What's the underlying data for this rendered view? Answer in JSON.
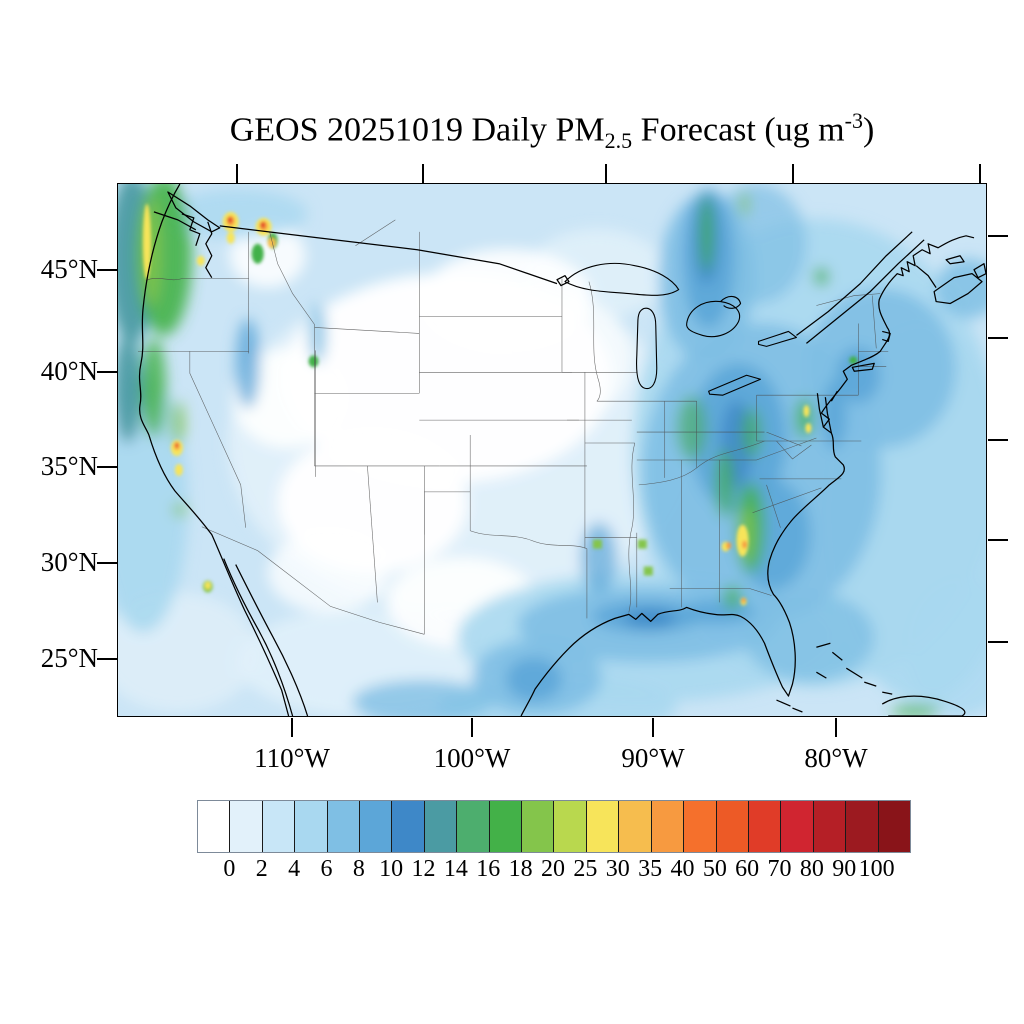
{
  "title": {
    "prefix": "GEOS 20251019 Daily PM",
    "sub": "2.5",
    "mid": " Forecast (ug m",
    "sup": "-3",
    "suffix": ")"
  },
  "axes": {
    "lat_labels": [
      "45°N",
      "40°N",
      "35°N",
      "30°N",
      "25°N"
    ],
    "lon_labels": [
      "110°W",
      "100°W",
      "90°W",
      "80°W"
    ]
  },
  "colorbar": {
    "tick_labels": [
      "0",
      "2",
      "4",
      "6",
      "8",
      "10",
      "12",
      "14",
      "16",
      "18",
      "20",
      "25",
      "30",
      "35",
      "40",
      "50",
      "60",
      "70",
      "80",
      "90",
      "100"
    ],
    "colors": [
      "#FFFFFF",
      "#E2F1FA",
      "#C8E6F7",
      "#A9D8F0",
      "#7FBFE4",
      "#5CA6D8",
      "#3E88C8",
      "#4B9BA3",
      "#4DAE6E",
      "#43B148",
      "#84C54B",
      "#B9D84E",
      "#F7E45A",
      "#F6BD4E",
      "#F79A40",
      "#F5702C",
      "#ED5A26",
      "#E03C28",
      "#D02530",
      "#B51F26",
      "#9C1A20",
      "#891419"
    ],
    "border_color": "#7d8a99"
  },
  "chart_data": {
    "type": "heatmap",
    "title": "GEOS 20251019 Daily PM2.5 Forecast (ug m-3)",
    "model": "GEOS",
    "forecast_date": "20251019",
    "variable": "Daily PM2.5",
    "units": "ug m-3",
    "region": "Continental United States with southern Canada and northern Mexico",
    "projection": "lat-lon map, approx 23N-51N, 126W-64W",
    "lat_ticks": [
      "45°N",
      "40°N",
      "35°N",
      "30°N",
      "25°N"
    ],
    "lon_ticks": [
      "110°W",
      "100°W",
      "90°W",
      "80°W"
    ],
    "levels": [
      0,
      2,
      4,
      6,
      8,
      10,
      12,
      14,
      16,
      18,
      20,
      25,
      30,
      35,
      40,
      50,
      60,
      70,
      80,
      90,
      100
    ],
    "palette": [
      "#FFFFFF",
      "#E2F1FA",
      "#C8E6F7",
      "#A9D8F0",
      "#7FBFE4",
      "#5CA6D8",
      "#3E88C8",
      "#4B9BA3",
      "#4DAE6E",
      "#43B148",
      "#84C54B",
      "#B9D84E",
      "#F7E45A",
      "#F6BD4E",
      "#F79A40",
      "#F5702C",
      "#ED5A26",
      "#E03C28",
      "#D02530",
      "#B51F26",
      "#9C1A20",
      "#891419"
    ],
    "legend_position": "bottom",
    "notable_features": [
      {
        "area": "Pacific Northwest coast and Cascades (WA/OR)",
        "approx_value": "10-25 with yellow band 25-30 along coast"
      },
      {
        "area": "Hotspots near US-Canada border in Washington",
        "approx_value": "40-70 (small red cores)"
      },
      {
        "area": "Northern California / Sierra foothills spots",
        "approx_value": "25-50 with tiny red core"
      },
      {
        "area": "Plume through Lake Huron / Michigan into Ontario",
        "approx_value": "8-25 with green-yellow cores"
      },
      {
        "area": "Georgia / Southeast plume",
        "approx_value": "14-40 with small orange cores"
      },
      {
        "area": "Ohio Valley and Appalachians",
        "approx_value": "6-16"
      },
      {
        "area": "Chesapeake / Washington DC area",
        "approx_value": "14-30 spots"
      },
      {
        "area": "Gulf Coast (Texas to Florida panhandle)",
        "approx_value": "6-12"
      },
      {
        "area": "Lower Mississippi small spots",
        "approx_value": "18-25"
      },
      {
        "area": "Central Plains and interior West",
        "approx_value": "0-4"
      },
      {
        "area": "Atlantic and Gulf offshore waters",
        "approx_value": "2-8"
      }
    ]
  }
}
